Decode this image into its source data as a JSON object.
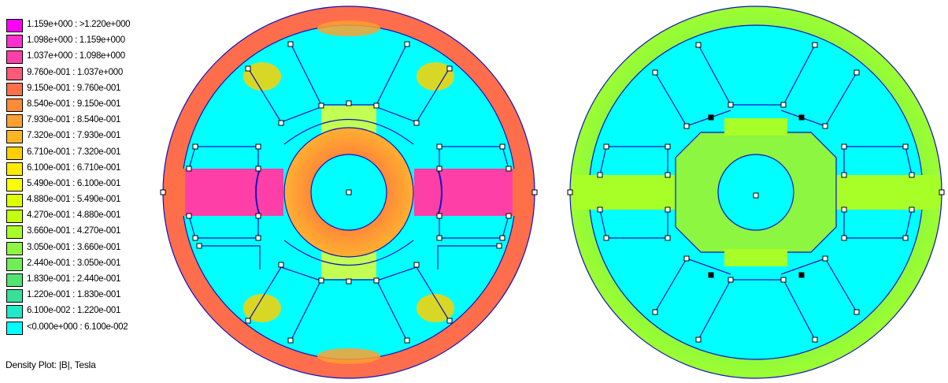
{
  "plot_title": "Density Plot: |B|, Tesla",
  "legend": [
    {
      "label": "1.159e+000 : >1.220e+000",
      "color": "#ff00ff"
    },
    {
      "label": "1.098e+000 : 1.159e+000",
      "color": "#ff2fd0"
    },
    {
      "label": "1.037e+000 : 1.098e+000",
      "color": "#ff3fa8"
    },
    {
      "label": "9.760e-001 : 1.037e+000",
      "color": "#ff5a78"
    },
    {
      "label": "9.150e-001 : 9.760e-001",
      "color": "#ff7048"
    },
    {
      "label": "8.540e-001 : 9.150e-001",
      "color": "#ff8a38"
    },
    {
      "label": "7.930e-001 : 8.540e-001",
      "color": "#ffa030"
    },
    {
      "label": "7.320e-001 : 7.930e-001",
      "color": "#ffb620"
    },
    {
      "label": "6.710e-001 : 7.320e-001",
      "color": "#ffd000"
    },
    {
      "label": "6.100e-001 : 6.710e-001",
      "color": "#ffea00"
    },
    {
      "label": "5.490e-001 : 6.100e-001",
      "color": "#f8ff00"
    },
    {
      "label": "4.880e-001 : 5.490e-001",
      "color": "#ddff00"
    },
    {
      "label": "4.270e-001 : 4.880e-001",
      "color": "#c2ff10"
    },
    {
      "label": "3.660e-001 : 4.270e-001",
      "color": "#a8ff28"
    },
    {
      "label": "3.050e-001 : 3.660e-001",
      "color": "#8cf640"
    },
    {
      "label": "2.440e-001 : 3.050e-001",
      "color": "#70ee58"
    },
    {
      "label": "1.830e-001 : 2.440e-001",
      "color": "#52e470"
    },
    {
      "label": "1.220e-001 : 1.830e-001",
      "color": "#38e098"
    },
    {
      "label": "6.100e-002 : 1.220e-001",
      "color": "#20e8c8"
    },
    {
      "label": "<0.000e+000 : 6.100e-002",
      "color": "#00ffff"
    }
  ],
  "colors": {
    "outline": "#1010c0",
    "node": "#000000",
    "cyan": "#00ffff",
    "yoke_left": "#ff6a4e",
    "tooth_left": "#ff3f9a",
    "core_left": "#ff9640",
    "neck_left": "#d8ff20",
    "band_right": "#8cf640",
    "neck_right": "#b4ff20"
  },
  "machines": [
    {
      "name": "left-machine"
    },
    {
      "name": "right-machine"
    }
  ]
}
